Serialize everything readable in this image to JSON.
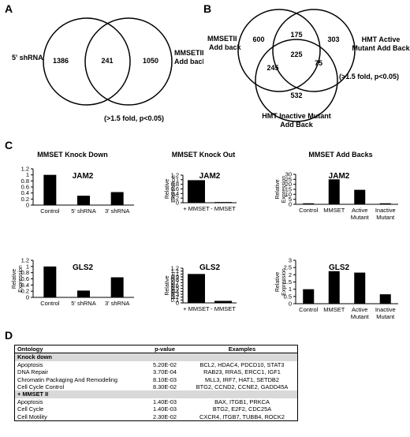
{
  "panels": {
    "a": "A",
    "b": "B",
    "c": "C",
    "d": "D"
  },
  "venn_a": {
    "left_label": "5' shRNA",
    "right_label_1": "MMSETII",
    "right_label_2": "Add back",
    "left_only": "1386",
    "overlap": "241",
    "right_only": "1050",
    "note": "(>1.5 fold, p<0.05)"
  },
  "venn_b": {
    "left_label_1": "MMSETII",
    "left_label_2": "Add back",
    "right_label_1": "HMT Active",
    "right_label_2": "Mutant Add Back",
    "bottom_label_1": "HMT Inactive Mutant",
    "bottom_label_2": "Add Back",
    "left_only": "600",
    "left_right": "175",
    "right_only": "303",
    "center": "225",
    "left_bottom": "245",
    "right_bottom": "75",
    "bottom_only": "532",
    "note": "(>1.5 fold, p<0.05)"
  },
  "panel_c": {
    "col_titles": [
      "MMSET Knock Down",
      "MMSET Knock Out",
      "MMSET Add Backs"
    ],
    "ylabel": "Relative Expression"
  },
  "chart_data": [
    {
      "type": "bar",
      "title": "JAM2",
      "categories": [
        "Control",
        "5' shRNA",
        "3' shRNA"
      ],
      "values": [
        1.0,
        0.31,
        0.43
      ],
      "ylim": [
        0,
        1.2
      ],
      "yticks": [
        "0",
        "0.2",
        "0.4",
        "0.6",
        "0.8",
        "1",
        "1.2"
      ],
      "ylabel": ""
    },
    {
      "type": "bar",
      "title": "JAM2",
      "categories": [
        "+ MMSET",
        "- MMSET"
      ],
      "values": [
        0.98,
        0.03
      ],
      "ylim": [
        0,
        1.2
      ],
      "yticks": [
        "0",
        "0.2",
        "0.4",
        "0.6",
        "0.8",
        "1",
        "1.2"
      ],
      "ylabel": "Relative Expression"
    },
    {
      "type": "bar",
      "title": "JAM2",
      "categories": [
        "Control",
        "MMSET",
        "Active Mutant",
        "Inactive Mutant"
      ],
      "values": [
        1,
        25,
        14.5,
        1
      ],
      "ylim": [
        0,
        30
      ],
      "yticks": [
        "0",
        "5",
        "10",
        "15",
        "20",
        "25",
        "30"
      ],
      "ylabel": "Relative Expression"
    },
    {
      "type": "bar",
      "title": "GLS2",
      "categories": [
        "Control",
        "5' shRNA",
        "3' shRNA"
      ],
      "values": [
        1.0,
        0.22,
        0.65
      ],
      "ylim": [
        0,
        1.2
      ],
      "yticks": [
        "0",
        "0.2",
        "0.4",
        "0.6",
        "0.8",
        "1",
        "1.2"
      ],
      "ylabel": "Relative Expression"
    },
    {
      "type": "bar",
      "title": "GLS2",
      "categories": [
        "+ MMSET",
        "- MMSET"
      ],
      "values": [
        1.0,
        0.07
      ],
      "ylim": [
        0,
        1.2
      ],
      "yticks": [
        "0",
        "0.1",
        "0.2",
        "0.3",
        "0.4",
        "0.5",
        "0.6",
        "0.7",
        "0.8",
        "0.9",
        "1",
        "1.1",
        "1.2"
      ],
      "ylabel": "Relative Expression"
    },
    {
      "type": "bar",
      "title": "GLS2",
      "categories": [
        "Control",
        "MMSET",
        "Active Mutant",
        "Inactive Mutant"
      ],
      "values": [
        1.0,
        2.25,
        2.15,
        0.65
      ],
      "ylim": [
        0,
        3
      ],
      "yticks": [
        "0",
        "0.5",
        "1",
        "1.5",
        "2",
        "2.5",
        "3"
      ],
      "ylabel": "Relative Expression"
    }
  ],
  "table": {
    "headers": [
      "Ontology",
      "p-value",
      "Examples"
    ],
    "sections": [
      {
        "name": "Knock down",
        "rows": [
          [
            "Apoptosis",
            "5.20E-02",
            "BCL2, HDAC4, PDCD10, STAT3"
          ],
          [
            "DNA Repair",
            "3.70E-04",
            "RAB23, RRAS, ERCC1, IGF1"
          ],
          [
            "Chromatin Packaging And Remodeling",
            "8.10E-03",
            "MLL3, IRF7, HAT1, SETDB2"
          ],
          [
            "Cell Cycle Control",
            "8.30E-02",
            "BTG2, CCND2, CCNE2, GADD45A"
          ]
        ]
      },
      {
        "name": "+ MMSET II",
        "rows": [
          [
            "Apoptosis",
            "1.40E-03",
            "BAX, ITGB1, PRKCA"
          ],
          [
            "Cell Cycle",
            "1.40E-03",
            "BTG2, E2F2, CDC25A"
          ],
          [
            "Cell Motility",
            "2.30E-02",
            "CXCR4, ITGB7, TUBB4, ROCK2"
          ]
        ]
      }
    ]
  }
}
